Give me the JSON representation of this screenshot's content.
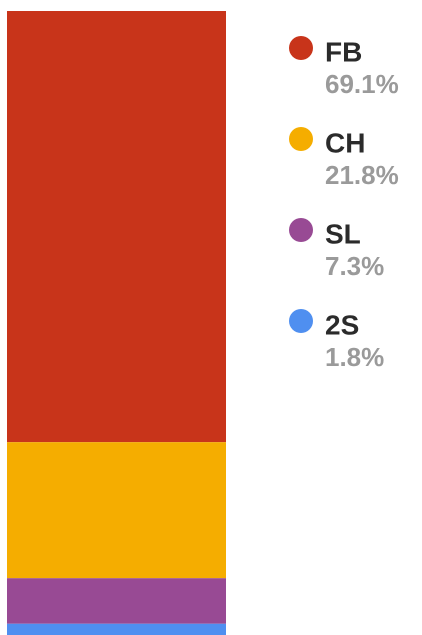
{
  "chart_data": {
    "type": "bar",
    "stacked": true,
    "series": [
      {
        "name": "FB",
        "color": "#c8341a",
        "values": [
          69.1
        ],
        "value_labels": [
          "69.1%"
        ]
      },
      {
        "name": "CH",
        "color": "#f5ad00",
        "values": [
          21.8
        ],
        "value_labels": [
          "21.8%"
        ]
      },
      {
        "name": "SL",
        "color": "#984a94",
        "values": [
          7.3
        ],
        "value_labels": [
          "7.3%"
        ]
      },
      {
        "name": "2S",
        "color": "#4f8ff0",
        "values": [
          1.8
        ],
        "value_labels": [
          "1.8%"
        ]
      }
    ],
    "legend": "right"
  }
}
